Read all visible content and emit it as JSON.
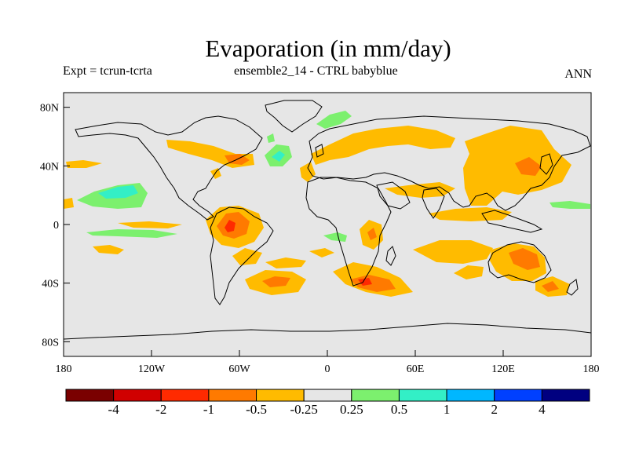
{
  "header": {
    "title": "Evaporation (in mm/day)",
    "left_label": "Expt = tcrun-tcrta",
    "center_label": "ensemble2_14 - CTRL babyblue",
    "right_label": "ANN"
  },
  "axes": {
    "lat_ticks": [
      {
        "value": 80,
        "label": "80N"
      },
      {
        "value": 40,
        "label": "40N"
      },
      {
        "value": 0,
        "label": "0"
      },
      {
        "value": -40,
        "label": "40S"
      },
      {
        "value": -80,
        "label": "80S"
      }
    ],
    "lon_ticks": [
      {
        "value": -180,
        "label": "180"
      },
      {
        "value": -120,
        "label": "120W"
      },
      {
        "value": -60,
        "label": "60W"
      },
      {
        "value": 0,
        "label": "0"
      },
      {
        "value": 60,
        "label": "60E"
      },
      {
        "value": 120,
        "label": "120E"
      },
      {
        "value": 180,
        "label": "180"
      }
    ],
    "lon_range": [
      -180,
      180
    ],
    "lat_range": [
      -90,
      90
    ]
  },
  "colorbar": {
    "colors": [
      "#7a0000",
      "#d00000",
      "#ff2a00",
      "#ff7a00",
      "#ffbb00",
      "#e6e6e6",
      "#7cf06e",
      "#33efc6",
      "#00b7ff",
      "#0040ff",
      "#000080"
    ],
    "labels": [
      "-4",
      "-2",
      "-1",
      "-0.5",
      "-0.25",
      "0.25",
      "0.5",
      "1",
      "2",
      "4"
    ]
  }
}
